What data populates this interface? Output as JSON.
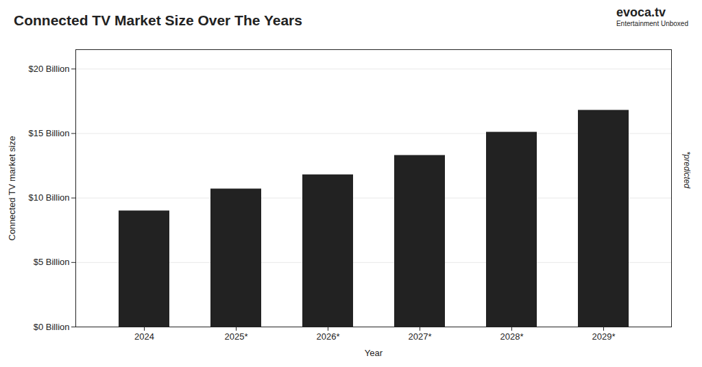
{
  "chart_data": {
    "type": "bar",
    "title": "Connected TV Market Size Over The Years",
    "xlabel": "Year",
    "ylabel": "Connected TV market size",
    "categories": [
      "2024",
      "2025*",
      "2026*",
      "2027*",
      "2028*",
      "2029*"
    ],
    "values": [
      9.0,
      10.7,
      11.8,
      13.3,
      15.1,
      16.8
    ],
    "ylim": [
      0,
      21.5
    ],
    "yticks": [
      {
        "value": 0,
        "label": "$0 Billion"
      },
      {
        "value": 5,
        "label": "$5 Billion"
      },
      {
        "value": 10,
        "label": "$10 Billion"
      },
      {
        "value": 15,
        "label": "$15 Billion"
      },
      {
        "value": 20,
        "label": "$20 Billion"
      }
    ],
    "grid": true,
    "annotations": [
      "*predicted",
      "evoca.tv",
      "Entertainment Unboxed"
    ]
  }
}
